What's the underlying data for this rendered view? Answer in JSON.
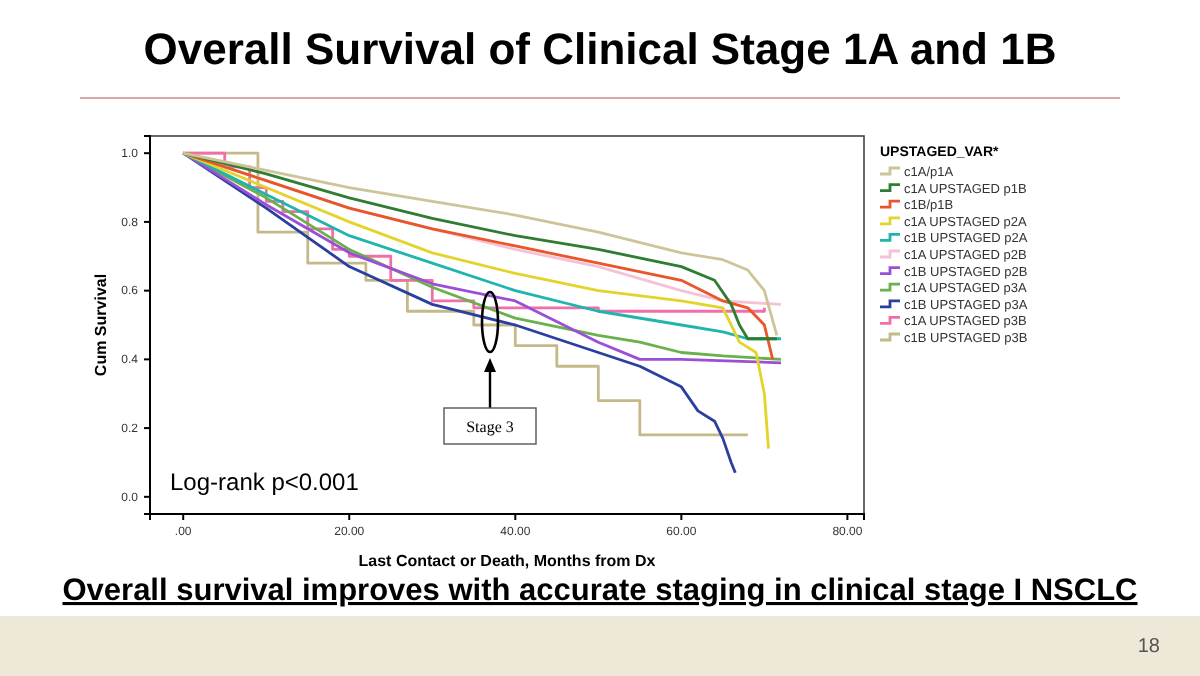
{
  "chart_data": {
    "type": "line",
    "title": "Overall Survival of Clinical Stage 1A and 1B",
    "subtitle": "Overall survival improves with accurate staging in clinical stage I NSCLC",
    "xlabel": "Last Contact or Death, Months from Dx",
    "ylabel": "Cum Survival",
    "legend_title": "UPSTAGED_VAR*",
    "legend": "right",
    "annotations": [
      "Log-rank p<0.001",
      "Stage 3",
      "18"
    ],
    "xlim": [
      -4,
      82
    ],
    "ylim": [
      -0.05,
      1.05
    ],
    "xticks": [
      {
        "value": 0,
        "label": ".00"
      },
      {
        "value": 20,
        "label": "20.00"
      },
      {
        "value": 40,
        "label": "40.00"
      },
      {
        "value": 60,
        "label": "60.00"
      },
      {
        "value": 80,
        "label": "80.00"
      }
    ],
    "yticks": [
      {
        "value": 0,
        "label": "0.0"
      },
      {
        "value": 0.2,
        "label": "0.2"
      },
      {
        "value": 0.4,
        "label": "0.4"
      },
      {
        "value": 0.6,
        "label": "0.6"
      },
      {
        "value": 0.8,
        "label": "0.8"
      },
      {
        "value": 1,
        "label": "1.0"
      }
    ],
    "series": [
      {
        "name": "c1A/p1A",
        "color": "#cdc49a",
        "x": [
          0,
          10,
          20,
          30,
          40,
          50,
          60,
          65,
          68,
          70,
          71.5
        ],
        "values": [
          1,
          0.95,
          0.9,
          0.86,
          0.82,
          0.77,
          0.71,
          0.69,
          0.66,
          0.6,
          0.47
        ]
      },
      {
        "name": "c1A UPSTAGED p1B",
        "color": "#2e7d32",
        "x": [
          0,
          10,
          20,
          30,
          40,
          50,
          60,
          64,
          66,
          67,
          68,
          71.5
        ],
        "values": [
          1,
          0.94,
          0.87,
          0.81,
          0.76,
          0.72,
          0.67,
          0.63,
          0.56,
          0.5,
          0.46,
          0.46
        ]
      },
      {
        "name": "c1B/p1B",
        "color": "#e8562a",
        "x": [
          0,
          10,
          20,
          30,
          40,
          50,
          60,
          65,
          68,
          70,
          71
        ],
        "values": [
          1,
          0.92,
          0.84,
          0.78,
          0.73,
          0.68,
          0.63,
          0.57,
          0.55,
          0.5,
          0.4
        ]
      },
      {
        "name": "c1A UPSTAGED p2A",
        "color": "#e3d42a",
        "x": [
          0,
          10,
          20,
          30,
          40,
          50,
          60,
          65,
          67,
          69,
          70,
          70.5
        ],
        "values": [
          1,
          0.9,
          0.8,
          0.71,
          0.65,
          0.6,
          0.57,
          0.55,
          0.45,
          0.42,
          0.3,
          0.14
        ]
      },
      {
        "name": "c1B UPSTAGED p2A",
        "color": "#1fb5ad",
        "x": [
          0,
          10,
          20,
          30,
          40,
          50,
          60,
          65,
          68,
          72
        ],
        "values": [
          1,
          0.88,
          0.76,
          0.68,
          0.6,
          0.54,
          0.5,
          0.48,
          0.46,
          0.46
        ]
      },
      {
        "name": "c1A UPSTAGED p2B",
        "color": "#f4c2d4",
        "x": [
          0,
          10,
          20,
          30,
          40,
          50,
          60,
          65,
          72
        ],
        "values": [
          1,
          0.92,
          0.84,
          0.78,
          0.72,
          0.67,
          0.6,
          0.57,
          0.56
        ]
      },
      {
        "name": "c1B UPSTAGED p2B",
        "color": "#9b4fd6",
        "x": [
          0,
          10,
          20,
          30,
          40,
          50,
          55,
          60,
          72
        ],
        "values": [
          1,
          0.85,
          0.71,
          0.62,
          0.57,
          0.45,
          0.4,
          0.4,
          0.39
        ]
      },
      {
        "name": "c1A UPSTAGED p3A",
        "color": "#6ab04c",
        "x": [
          0,
          10,
          20,
          30,
          40,
          50,
          55,
          60,
          65,
          72
        ],
        "values": [
          1,
          0.87,
          0.72,
          0.61,
          0.52,
          0.47,
          0.45,
          0.42,
          0.41,
          0.4
        ]
      },
      {
        "name": "c1B UPSTAGED p3A",
        "color": "#2b3fa0",
        "x": [
          0,
          10,
          20,
          30,
          40,
          50,
          55,
          60,
          62,
          64,
          65,
          66,
          66.5
        ],
        "values": [
          1,
          0.84,
          0.67,
          0.56,
          0.5,
          0.42,
          0.38,
          0.32,
          0.25,
          0.22,
          0.17,
          0.1,
          0.07
        ]
      },
      {
        "name": "c1A UPSTAGED p3B",
        "type": "step",
        "color": "#f06fa8",
        "x": [
          0,
          5,
          8,
          10,
          12,
          15,
          18,
          20,
          25,
          30,
          35,
          40,
          50,
          60,
          70
        ],
        "values": [
          1,
          0.96,
          0.9,
          0.86,
          0.83,
          0.78,
          0.72,
          0.7,
          0.63,
          0.57,
          0.55,
          0.55,
          0.54,
          0.54,
          0.55
        ]
      },
      {
        "name": "c1B UPSTAGED p3B",
        "type": "step",
        "color": "#c5b98a",
        "x": [
          0,
          9,
          15,
          22,
          27,
          35,
          40,
          45,
          50,
          55,
          68
        ],
        "values": [
          1,
          0.77,
          0.68,
          0.63,
          0.54,
          0.5,
          0.44,
          0.38,
          0.28,
          0.18,
          0.18
        ]
      }
    ]
  }
}
